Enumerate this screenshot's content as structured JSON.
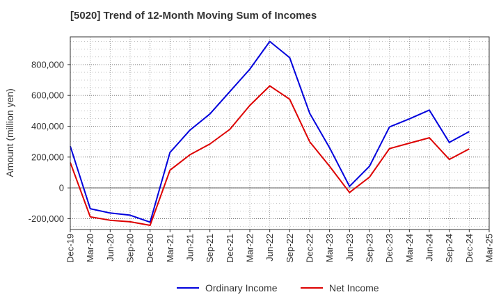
{
  "chart_data": {
    "type": "line",
    "title": "[5020]  Trend of 12-Month Moving Sum of Incomes",
    "xlabel": "",
    "ylabel": "Amount (million yen)",
    "ylim": [
      -270000,
      980000
    ],
    "yticks": [
      -200000,
      0,
      200000,
      400000,
      600000,
      800000
    ],
    "ytick_labels": [
      "-200,000",
      "0",
      "200,000",
      "400,000",
      "600,000",
      "800,000"
    ],
    "grid": true,
    "legend_position": "bottom-center",
    "categories": [
      "Dec-19",
      "Mar-20",
      "Jun-20",
      "Sep-20",
      "Dec-20",
      "Mar-21",
      "Jun-21",
      "Sep-21",
      "Dec-21",
      "Mar-22",
      "Jun-22",
      "Sep-22",
      "Dec-22",
      "Mar-23",
      "Jun-23",
      "Sep-23",
      "Dec-23",
      "Mar-24",
      "Jun-24",
      "Sep-24",
      "Dec-24",
      "Mar-25"
    ],
    "series": [
      {
        "name": "Ordinary Income",
        "color": "#0000dd",
        "values": [
          270000,
          -135000,
          -163000,
          -177000,
          -222000,
          230000,
          375000,
          480000,
          625000,
          770000,
          950000,
          845000,
          485000,
          260000,
          10000,
          140000,
          395000,
          448000,
          505000,
          295000,
          365000,
          null
        ]
      },
      {
        "name": "Net Income",
        "color": "#dd0000",
        "values": [
          165000,
          -188000,
          -210000,
          -220000,
          -243000,
          115000,
          215000,
          285000,
          380000,
          535000,
          662000,
          575000,
          300000,
          140000,
          -30000,
          70000,
          255000,
          290000,
          325000,
          185000,
          253000,
          null
        ]
      }
    ]
  }
}
